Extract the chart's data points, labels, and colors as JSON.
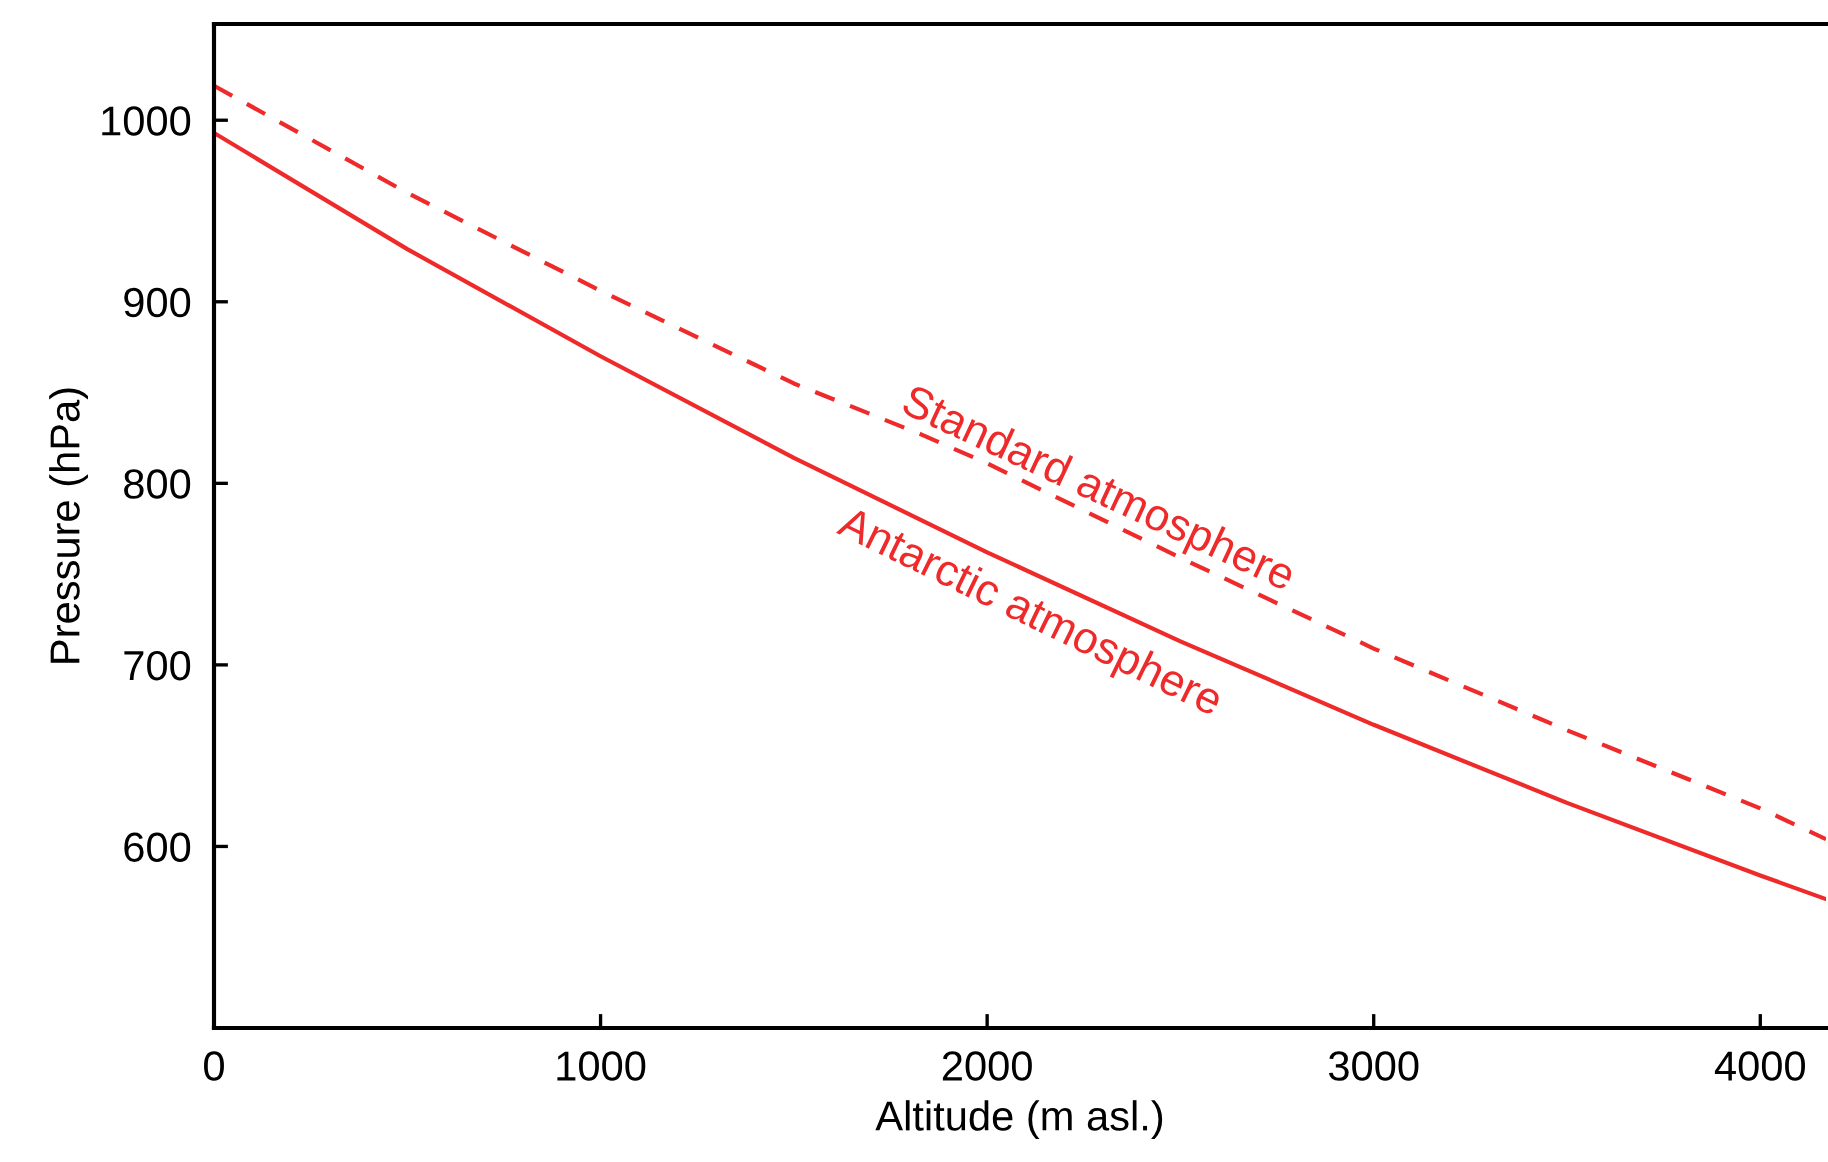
{
  "chart_data": {
    "type": "line",
    "xlabel": "Altitude (m asl.)",
    "ylabel": "Pressure (hPa)",
    "xlim": [
      0,
      4170
    ],
    "ylim": [
      500,
      1053
    ],
    "xticks": [
      0,
      1000,
      2000,
      3000,
      4000
    ],
    "yticks": [
      600,
      700,
      800,
      900,
      1000
    ],
    "grid": false,
    "legend": false,
    "marker": "none",
    "series": [
      {
        "color": "#ee2a2a",
        "line_style": "dashed",
        "x": [
          0,
          500,
          1000,
          1500,
          1829,
          2000,
          2500,
          3000,
          3500,
          4000,
          4170
        ],
        "values": [
          1019,
          960,
          906,
          855,
          827,
          811,
          759,
          709,
          664,
          621,
          604
        ]
      },
      {
        "color": "#ee2a2a",
        "line_style": "solid",
        "x": [
          0,
          500,
          1000,
          1500,
          2000,
          2500,
          3000,
          3500,
          4000,
          4170
        ],
        "values": [
          993,
          929,
          870,
          814,
          762,
          713,
          667,
          624,
          584,
          571
        ]
      }
    ],
    "annotations": [
      "Standard atmosphere",
      "Antarctic atmosphere"
    ]
  }
}
